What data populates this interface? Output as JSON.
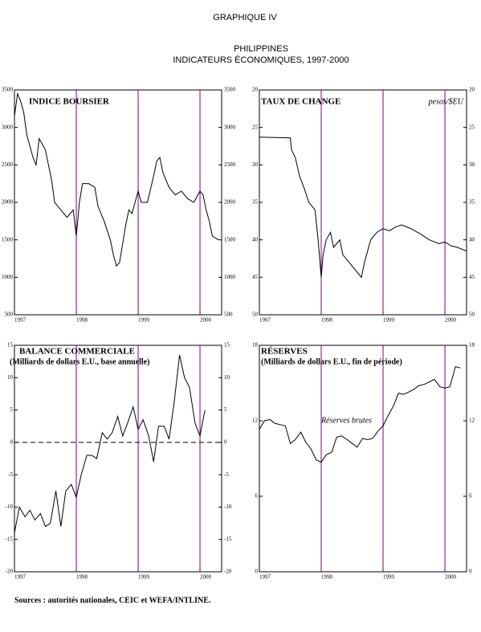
{
  "header": {
    "title": "GRAPHIQUE IV",
    "country": "PHILIPPINES",
    "subtitle": "INDICATEURS ÉCONOMIQUES, 1997-2000"
  },
  "source": "Sources :  autorités nationales, CEIC et WEFA/INTLINE.",
  "chart_data": [
    {
      "type": "line",
      "title": "INDICE BOURSIER",
      "x": [
        1997.0,
        1997.05,
        1997.1,
        1997.15,
        1997.2,
        1997.3,
        1997.35,
        1997.4,
        1997.5,
        1997.6,
        1997.65,
        1997.75,
        1997.85,
        1997.95,
        1998.0,
        1998.05,
        1998.1,
        1998.2,
        1998.3,
        1998.35,
        1998.45,
        1998.55,
        1998.6,
        1998.65,
        1998.7,
        1998.75,
        1998.8,
        1998.85,
        1998.9,
        1999.0,
        1999.05,
        1999.15,
        1999.25,
        1999.3,
        1999.35,
        1999.4,
        1999.5,
        1999.6,
        1999.7,
        1999.8,
        1999.9,
        2000.0,
        2000.05,
        2000.1,
        2000.15,
        2000.2,
        2000.3
      ],
      "series": [
        {
          "color": "#000000",
          "values": [
            3150,
            3450,
            3350,
            3200,
            2900,
            2600,
            2500,
            2850,
            2700,
            2300,
            2000,
            1900,
            1800,
            1900,
            1550,
            2000,
            2250,
            2250,
            2200,
            1950,
            1750,
            1500,
            1300,
            1150,
            1200,
            1450,
            1700,
            1900,
            1850,
            2150,
            2000,
            2000,
            2350,
            2550,
            2600,
            2400,
            2200,
            2100,
            2150,
            2050,
            2000,
            2150,
            2100,
            1900,
            1750,
            1550,
            1500
          ]
        }
      ],
      "xlim": [
        1997,
        2000.35
      ],
      "xticks": [
        1997,
        1998,
        1999,
        2000
      ],
      "ylim": [
        500,
        3500
      ],
      "yticks": [
        500,
        1000,
        1500,
        2000,
        2500,
        3000,
        3500
      ],
      "mirror_y": true,
      "vgrid": true,
      "vgrid_color": "#800080"
    },
    {
      "type": "line",
      "title": "TAUX DE CHANGE",
      "annotation": "pesos/$EU",
      "x": [
        1997.0,
        1997.5,
        1997.52,
        1997.58,
        1997.65,
        1997.72,
        1997.8,
        1997.9,
        1997.95,
        1998.0,
        1998.03,
        1998.08,
        1998.15,
        1998.2,
        1998.3,
        1998.35,
        1998.45,
        1998.55,
        1998.65,
        1998.7,
        1998.8,
        1998.9,
        1999.0,
        1999.1,
        1999.2,
        1999.3,
        1999.45,
        1999.6,
        1999.75,
        1999.9,
        2000.0,
        2000.1,
        2000.2,
        2000.35
      ],
      "series": [
        {
          "color": "#000000",
          "values": [
            26.3,
            26.4,
            28,
            29,
            31.5,
            33,
            35,
            36,
            40,
            45,
            42,
            40,
            39,
            41,
            40,
            42,
            43,
            44,
            45,
            43,
            40,
            39,
            38.5,
            38.8,
            38.3,
            38,
            38.5,
            39.2,
            40,
            40.5,
            40.3,
            40.8,
            41,
            41.5
          ]
        }
      ],
      "xlim": [
        1997,
        2000.35
      ],
      "xticks": [
        1997,
        1998,
        1999,
        2000
      ],
      "ylim": [
        20,
        50
      ],
      "yticks": [
        20,
        25,
        30,
        35,
        40,
        45,
        50
      ],
      "y_inverted": true,
      "mirror_y": true,
      "vgrid": true,
      "vgrid_color": "#800080"
    },
    {
      "type": "line",
      "title": "BALANCE COMMERCIALE",
      "subtitle": "(Milliards de dollars E.U., base annuelle)",
      "x": [
        1997.0,
        1997.08,
        1997.17,
        1997.25,
        1997.33,
        1997.42,
        1997.5,
        1997.58,
        1997.67,
        1997.75,
        1997.83,
        1997.92,
        1998.0,
        1998.08,
        1998.17,
        1998.25,
        1998.33,
        1998.42,
        1998.5,
        1998.58,
        1998.67,
        1998.75,
        1998.83,
        1998.92,
        1999.0,
        1999.08,
        1999.17,
        1999.25,
        1999.33,
        1999.42,
        1999.5,
        1999.58,
        1999.67,
        1999.75,
        1999.83,
        1999.92,
        2000.0,
        2000.08
      ],
      "series": [
        {
          "color": "#000000",
          "values": [
            -14,
            -10,
            -11.5,
            -10.5,
            -12,
            -11,
            -13,
            -12.5,
            -7.5,
            -13,
            -7.5,
            -6.5,
            -8.5,
            -5,
            -2,
            -2,
            -2.5,
            1.5,
            0.5,
            1.5,
            4,
            1,
            3,
            5.5,
            2,
            3.5,
            1,
            -3,
            2.5,
            2.5,
            0.5,
            6,
            13.5,
            10,
            8.5,
            3,
            1,
            5
          ]
        }
      ],
      "xlim": [
        1997,
        2000.35
      ],
      "xticks": [
        1997,
        1998,
        1999,
        2000
      ],
      "ylim": [
        -20,
        15
      ],
      "yticks": [
        -20,
        -15,
        -10,
        -5,
        0,
        5,
        10,
        15
      ],
      "mirror_y": true,
      "vgrid": true,
      "vgrid_color": "#800080",
      "zero_line": true
    },
    {
      "type": "line",
      "title": "RÉSERVES",
      "subtitle": "(Milliards de dollars E.U., fin de période)",
      "annotation": "Réserves brutes",
      "x": [
        1997.0,
        1997.08,
        1997.17,
        1997.25,
        1997.33,
        1997.42,
        1997.5,
        1997.58,
        1997.67,
        1997.75,
        1997.83,
        1997.92,
        1998.0,
        1998.08,
        1998.17,
        1998.25,
        1998.33,
        1998.42,
        1998.5,
        1998.58,
        1998.67,
        1998.75,
        1998.83,
        1998.92,
        1999.0,
        1999.08,
        1999.17,
        1999.25,
        1999.33,
        1999.42,
        1999.5,
        1999.58,
        1999.67,
        1999.75,
        1999.83,
        1999.92,
        2000.0,
        2000.08,
        2000.17,
        2000.25
      ],
      "series": [
        {
          "color": "#000000",
          "values": [
            11.3,
            12,
            12.1,
            11.8,
            11.7,
            11.6,
            10.2,
            10.5,
            11.1,
            10.3,
            9.8,
            8.9,
            8.7,
            9.3,
            9.5,
            10.7,
            10.8,
            10.5,
            10.2,
            9.9,
            10.6,
            10.5,
            10.6,
            11.2,
            11.6,
            12.4,
            13.2,
            14.2,
            14.1,
            14.3,
            14.5,
            14.8,
            14.9,
            15.1,
            15.3,
            14.7,
            14.6,
            14.7,
            16.3,
            16.2
          ]
        }
      ],
      "xlim": [
        1997,
        2000.35
      ],
      "xticks": [
        1997,
        1998,
        1999,
        2000
      ],
      "ylim": [
        0,
        18
      ],
      "yticks": [
        0,
        6,
        12,
        18
      ],
      "mirror_y": true,
      "vgrid": true,
      "vgrid_color": "#800080"
    }
  ]
}
